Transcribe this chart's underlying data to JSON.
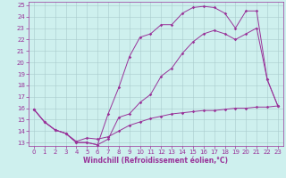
{
  "title": "",
  "xlabel": "Windchill (Refroidissement éolien,°C)",
  "bg_color": "#cef0ee",
  "line_color": "#993399",
  "grid_color": "#aacccc",
  "xlim": [
    -0.5,
    23.5
  ],
  "ylim": [
    12.7,
    25.3
  ],
  "yticks": [
    13,
    14,
    15,
    16,
    17,
    18,
    19,
    20,
    21,
    22,
    23,
    24,
    25
  ],
  "xticks": [
    0,
    1,
    2,
    3,
    4,
    5,
    6,
    7,
    8,
    9,
    10,
    11,
    12,
    13,
    14,
    15,
    16,
    17,
    18,
    19,
    20,
    21,
    22,
    23
  ],
  "line1_x": [
    0,
    1,
    2,
    3,
    4,
    5,
    6,
    7,
    8,
    9,
    10,
    11,
    12,
    13,
    14,
    15,
    16,
    17,
    18,
    19,
    20,
    21,
    22,
    23
  ],
  "line1_y": [
    15.9,
    14.8,
    14.1,
    13.8,
    13.0,
    13.0,
    12.8,
    15.5,
    17.8,
    20.5,
    22.2,
    22.5,
    23.3,
    23.3,
    24.3,
    24.8,
    24.9,
    24.8,
    24.3,
    23.0,
    24.5,
    24.5,
    18.5,
    16.2
  ],
  "line2_x": [
    0,
    1,
    2,
    3,
    4,
    5,
    6,
    7,
    8,
    9,
    10,
    11,
    12,
    13,
    14,
    15,
    16,
    17,
    18,
    19,
    20,
    21,
    22,
    23
  ],
  "line2_y": [
    15.9,
    14.8,
    14.1,
    13.8,
    13.0,
    13.0,
    12.8,
    13.3,
    15.2,
    15.5,
    16.5,
    17.2,
    18.8,
    19.5,
    20.8,
    21.8,
    22.5,
    22.8,
    22.5,
    22.0,
    22.5,
    23.0,
    18.5,
    16.2
  ],
  "line3_x": [
    0,
    1,
    2,
    3,
    4,
    5,
    6,
    7,
    8,
    9,
    10,
    11,
    12,
    13,
    14,
    15,
    16,
    17,
    18,
    19,
    20,
    21,
    22,
    23
  ],
  "line3_y": [
    15.9,
    14.8,
    14.1,
    13.8,
    13.1,
    13.4,
    13.3,
    13.5,
    14.0,
    14.5,
    14.8,
    15.1,
    15.3,
    15.5,
    15.6,
    15.7,
    15.8,
    15.8,
    15.9,
    16.0,
    16.0,
    16.1,
    16.1,
    16.2
  ],
  "marker_size": 1.8,
  "line_width": 0.7,
  "tick_fontsize": 5.0,
  "xlabel_fontsize": 5.5
}
